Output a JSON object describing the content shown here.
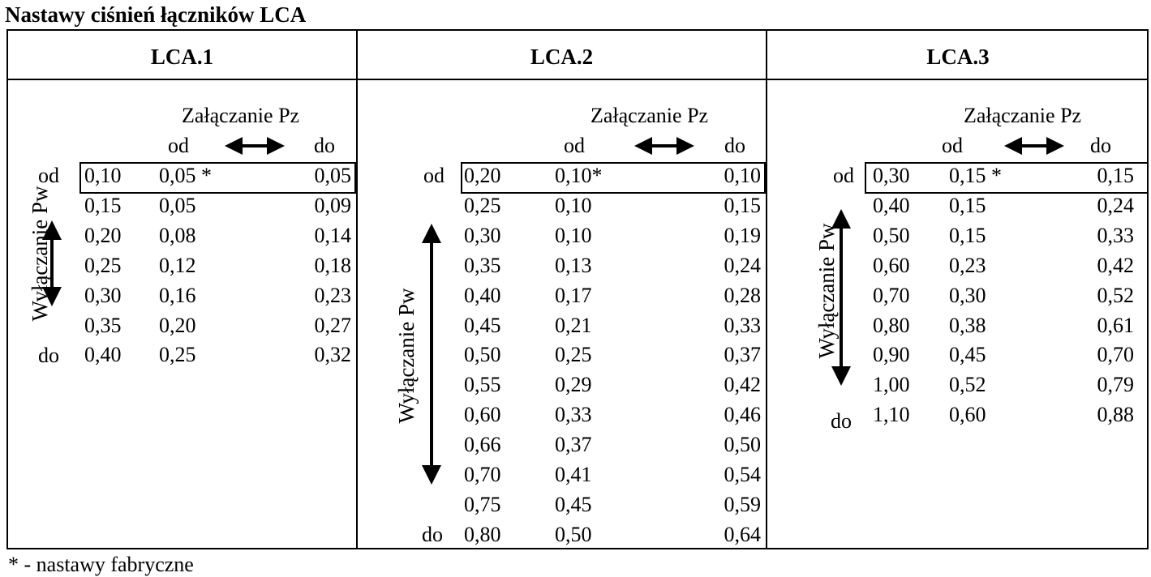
{
  "title": "Nastawy ciśnień łączników LCA",
  "footnote": "* - nastawy fabryczne",
  "columns": [
    {
      "header": "LCA.1",
      "switch_on_label": "Załączanie Pz",
      "switch_off_label": "Wyłączanie Pw",
      "od_label": "od",
      "do_label": "do",
      "rows": [
        {
          "pw": "0,10",
          "od": "0,05 *",
          "do": "0,05"
        },
        {
          "pw": "0,15",
          "od": "0,05",
          "do": "0,09"
        },
        {
          "pw": "0,20",
          "od": "0,08",
          "do": "0,14"
        },
        {
          "pw": "0,25",
          "od": "0,12",
          "do": "0,18"
        },
        {
          "pw": "0,30",
          "od": "0,16",
          "do": "0,23"
        },
        {
          "pw": "0,35",
          "od": "0,20",
          "do": "0,27"
        },
        {
          "pw": "0,40",
          "od": "0,25",
          "do": "0,32"
        }
      ]
    },
    {
      "header": "LCA.2",
      "switch_on_label": "Załączanie Pz",
      "switch_off_label": "Wyłączanie Pw",
      "od_label": "od",
      "do_label": "do",
      "rows": [
        {
          "pw": "0,20",
          "od": "0,10*",
          "do": "0,10"
        },
        {
          "pw": "0,25",
          "od": "0,10",
          "do": "0,15"
        },
        {
          "pw": "0,30",
          "od": "0,10",
          "do": "0,19"
        },
        {
          "pw": "0,35",
          "od": "0,13",
          "do": "0,24"
        },
        {
          "pw": "0,40",
          "od": "0,17",
          "do": "0,28"
        },
        {
          "pw": "0,45",
          "od": "0,21",
          "do": "0,33"
        },
        {
          "pw": "0,50",
          "od": "0,25",
          "do": "0,37"
        },
        {
          "pw": "0,55",
          "od": "0,29",
          "do": "0,42"
        },
        {
          "pw": "0,60",
          "od": "0,33",
          "do": "0,46"
        },
        {
          "pw": "0,66",
          "od": "0,37",
          "do": "0,50"
        },
        {
          "pw": "0,70",
          "od": "0,41",
          "do": "0,54"
        },
        {
          "pw": "0,75",
          "od": "0,45",
          "do": "0,59"
        },
        {
          "pw": "0,80",
          "od": "0,50",
          "do": "0,64"
        }
      ]
    },
    {
      "header": "LCA.3",
      "switch_on_label": "Załączanie Pz",
      "switch_off_label": "Wyłączanie Pw",
      "od_label": "od",
      "do_label": "do",
      "rows": [
        {
          "pw": "0,30",
          "od": "0,15 *",
          "do": "0,15"
        },
        {
          "pw": "0,40",
          "od": "0,15",
          "do": "0,24"
        },
        {
          "pw": "0,50",
          "od": "0,15",
          "do": "0,33"
        },
        {
          "pw": "0,60",
          "od": "0,23",
          "do": "0,42"
        },
        {
          "pw": "0,70",
          "od": "0,30",
          "do": "0,52"
        },
        {
          "pw": "0,80",
          "od": "0,38",
          "do": "0,61"
        },
        {
          "pw": "0,90",
          "od": "0,45",
          "do": "0,70"
        },
        {
          "pw": "1,00",
          "od": "0,52",
          "do": "0,79"
        },
        {
          "pw": "1,10",
          "od": "0,60",
          "do": "0,88"
        }
      ]
    }
  ]
}
